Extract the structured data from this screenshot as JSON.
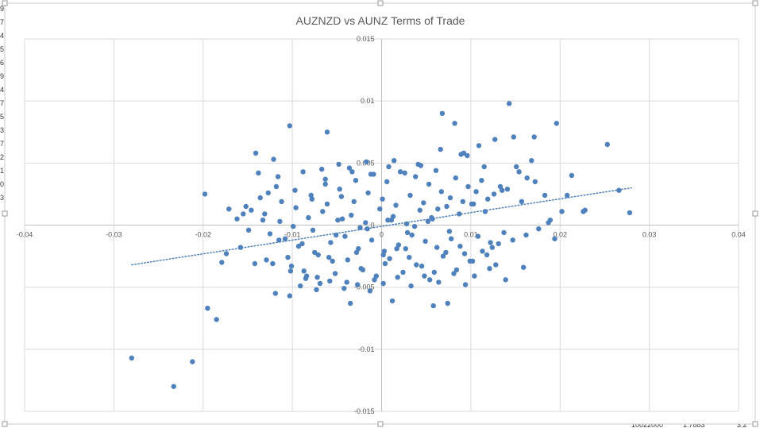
{
  "chart_data": {
    "type": "scatter",
    "title": "AUZNZD vs AUNZ Terms of Trade",
    "xlabel": "",
    "ylabel": "",
    "xlim": [
      -0.04,
      0.04
    ],
    "ylim": [
      -0.015,
      0.015
    ],
    "x_ticks": [
      "-0.04",
      "-0.03",
      "-0.02",
      "-0.01",
      "0",
      "0.01",
      "0.02",
      "0.03",
      "0.04"
    ],
    "y_ticks": [
      "-0.015",
      "-0.01",
      "-0.005",
      "0",
      "0.005",
      "0.01",
      "0.015"
    ],
    "grid": true,
    "legend": "none",
    "trendline": {
      "type": "linear",
      "style": "dotted",
      "x": [
        -0.028,
        0.028
      ],
      "y": [
        -0.0032,
        0.003
      ]
    },
    "series": [
      {
        "color": "#4f81bd",
        "x": [
          -0.028,
          -0.0233,
          -0.0212,
          -0.0195,
          -0.0185,
          -0.0179,
          -0.0198,
          -0.0174,
          0.0143,
          0.0196,
          0.0253,
          0.0068,
          0.0266,
          0.0278,
          0.0228,
          0.0213,
          -0.0103,
          0.0082,
          -0.0121,
          -0.0061,
          -0.0075,
          -0.0089,
          -0.0129,
          -0.0142,
          -0.0158,
          -0.0115,
          -0.0101,
          -0.0084,
          -0.0069,
          -0.0052,
          -0.0038,
          -0.0021,
          -0.0008,
          0.0004,
          0.0017,
          0.0031,
          0.0045,
          0.0059,
          0.0072,
          0.0088,
          0.0102,
          0.0118,
          0.0131,
          0.0147,
          0.0162,
          0.0176,
          0.0189,
          0.0202,
          -0.0136,
          -0.0118,
          -0.0097,
          -0.0079,
          -0.0063,
          -0.0047,
          -0.0029,
          -0.0012,
          0.0006,
          0.0021,
          0.0038,
          0.0053,
          0.0067,
          0.0083,
          0.0097,
          0.0112,
          0.0126,
          0.0141,
          -0.0152,
          -0.0125,
          -0.0108,
          -0.0093,
          -0.0071,
          -0.0057,
          -0.0041,
          -0.0026,
          -0.0011,
          0.0003,
          0.0019,
          0.0034,
          0.0049,
          0.0062,
          0.0078,
          0.0093,
          0.0108,
          0.0122,
          0.0137,
          -0.0131,
          -0.0114,
          -0.0099,
          -0.0082,
          -0.0066,
          -0.0049,
          -0.0034,
          -0.0018,
          -0.0002,
          0.0013,
          0.0028,
          0.0043,
          0.0057,
          0.0073,
          0.0087,
          0.0103,
          0.0116,
          -0.0122,
          -0.0105,
          -0.0087,
          -0.0072,
          -0.0055,
          -0.0039,
          -0.0023,
          -0.0006,
          0.0009,
          0.0024,
          0.0039,
          0.0054,
          0.0069,
          0.0084,
          0.0099,
          0.0113,
          0.0128,
          -0.0112,
          -0.0096,
          -0.0078,
          -0.0061,
          -0.0045,
          -0.0031,
          -0.0015,
          0.0001,
          0.0016,
          0.0032,
          0.0047,
          0.0063,
          0.0077,
          0.0091,
          0.0106,
          -0.0091,
          -0.0073,
          -0.0058,
          -0.0042,
          -0.0027,
          -0.0013,
          0.0002,
          0.0018,
          0.0033,
          0.0048,
          0.0064,
          0.0081,
          -0.0067,
          -0.0048,
          -0.0033,
          -0.0017,
          0.0008,
          0.0026,
          0.0044,
          0.0061,
          -0.0035,
          0.0012,
          0.0058,
          -0.0103,
          0.0151,
          0.0171,
          0.0183,
          0.0163,
          0.0133,
          0.0157,
          0.0172,
          0.0208,
          0.0226,
          0.0115,
          0.0096,
          0.0148,
          0.0127,
          0.0109,
          0.0092,
          0.0154,
          0.0168,
          0.0135,
          0.0119,
          0.0101,
          -0.0146,
          -0.0162,
          -0.0171,
          -0.0138,
          -0.0155,
          -0.0149,
          0.0187,
          0.0194,
          0.0104,
          0.0121,
          -0.0116,
          -0.0088,
          -0.0063,
          -0.0036,
          -0.0009,
          0.0014,
          0.0041,
          0.0066,
          0.0089,
          -0.0127,
          -0.0077,
          -0.0051,
          -0.0024,
          0.0007,
          0.0029,
          0.0052,
          0.0076,
          -0.0044,
          -0.0016,
          0.0011,
          0.0037,
          0.0056,
          -0.0059,
          -0.0028,
          0.0002,
          0.0027,
          -0.0085,
          -0.0102,
          -0.0119,
          0.0074,
          0.0094,
          0.0139,
          0.0159,
          -0.0141,
          -0.0133,
          0.0124
        ],
        "y": [
          -0.0107,
          -0.013,
          -0.011,
          -0.0067,
          -0.0076,
          -0.003,
          0.0025,
          -0.0023,
          0.0098,
          0.0082,
          0.0065,
          0.009,
          0.0028,
          0.001,
          0.0012,
          0.004,
          0.008,
          0.0082,
          0.0053,
          0.0075,
          -0.0022,
          -0.0015,
          -0.0028,
          -0.0031,
          -0.0018,
          -0.0012,
          -0.0033,
          -0.0041,
          -0.0047,
          -0.0039,
          -0.0028,
          -0.0036,
          -0.0044,
          -0.0031,
          -0.0019,
          -0.0026,
          -0.0033,
          -0.0038,
          -0.0022,
          -0.0017,
          -0.0029,
          -0.0024,
          -0.0015,
          -0.0012,
          -0.0008,
          -0.0003,
          0.0004,
          0.0011,
          0.0022,
          0.0031,
          0.0028,
          0.0024,
          0.0033,
          0.0029,
          0.0036,
          0.0041,
          0.0035,
          0.0043,
          0.0039,
          0.0033,
          0.0027,
          0.0038,
          0.0031,
          0.0036,
          0.0025,
          0.0029,
          0.0015,
          -0.0007,
          -0.0011,
          -0.0017,
          -0.0024,
          -0.0014,
          -0.0009,
          -0.0019,
          -0.0012,
          -0.0021,
          -0.0016,
          -0.0008,
          -0.0013,
          -0.0018,
          -0.0011,
          -0.0023,
          -0.0009,
          -0.0014,
          -0.0006,
          0.0009,
          0.0003,
          -0.0001,
          0.0006,
          0.0011,
          0.0004,
          0.0008,
          0.0002,
          0.0013,
          0.0007,
          0.0001,
          0.0012,
          0.0005,
          0.0015,
          0.0009,
          0.0017,
          0.0011,
          -0.0031,
          -0.0026,
          -0.0037,
          -0.0042,
          -0.0029,
          -0.0046,
          -0.0035,
          -0.0041,
          -0.0027,
          -0.0038,
          -0.0032,
          -0.0044,
          -0.0025,
          -0.0036,
          -0.0029,
          -0.0021,
          -0.0032,
          0.0019,
          0.0014,
          0.0021,
          0.0017,
          0.0023,
          0.0019,
          0.0026,
          0.0021,
          0.0016,
          0.0024,
          0.0018,
          0.0013,
          0.0022,
          0.0019,
          0.0027,
          -0.0049,
          -0.0052,
          -0.0045,
          -0.0051,
          -0.0048,
          -0.0053,
          -0.0047,
          -0.0042,
          -0.0049,
          -0.0041,
          -0.0046,
          -0.0039,
          0.0045,
          0.0049,
          0.0043,
          0.0051,
          0.0047,
          0.0042,
          0.0048,
          0.0044,
          -0.0063,
          -0.0061,
          -0.0065,
          -0.0057,
          0.0047,
          0.0071,
          0.0024,
          0.0038,
          0.0031,
          0.0019,
          0.0035,
          0.0024,
          0.0011,
          0.0047,
          0.0056,
          0.0071,
          0.0069,
          0.0064,
          0.0058,
          0.0043,
          0.0052,
          0.0028,
          0.0021,
          0.0017,
          0.0012,
          0.0005,
          0.0013,
          0.0042,
          0.0009,
          -0.0004,
          0.0002,
          -0.0011,
          -0.0041,
          -0.0035,
          0.0039,
          0.0043,
          0.0037,
          0.0046,
          0.0041,
          0.0052,
          0.0049,
          0.0061,
          0.0057,
          0.0026,
          -0.0004,
          -0.0008,
          -0.0002,
          0.0004,
          -0.0006,
          0.0003,
          -0.0005,
          0.0005,
          -0.0003,
          0.0004,
          -0.0001,
          0.0006,
          -0.0026,
          -0.0022,
          -0.0024,
          -0.0019,
          -0.0043,
          -0.0037,
          -0.0055,
          -0.0063,
          -0.0048,
          -0.0044,
          -0.0034,
          0.0058,
          0.0004,
          -0.0018
        ]
      }
    ]
  },
  "sheet_edge_left": [
    "9",
    "7",
    "4",
    "5",
    "6",
    "9",
    "4",
    "7",
    "5",
    "3",
    "7",
    "2",
    "1",
    "0",
    "3"
  ],
  "sheet_edge_bottom": [
    "10022000",
    "1.7883",
    "3.2"
  ]
}
